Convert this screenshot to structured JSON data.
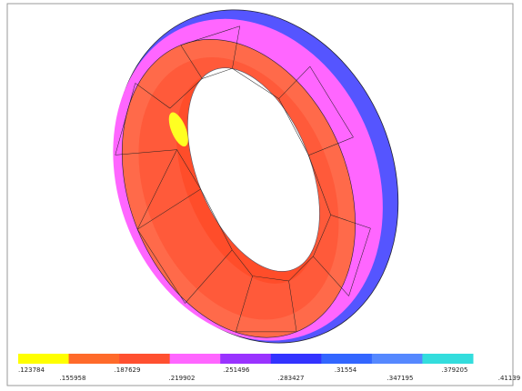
{
  "legend": {
    "colors": [
      "#ffff00",
      "#ff6a2a",
      "#ff5030",
      "#ff66ff",
      "#9933ff",
      "#3333ff",
      "#3366ff",
      "#5588ff",
      "#33dddd"
    ],
    "labels": [
      ".123784",
      ".155958",
      ".187629",
      ".219902",
      ".251496",
      ".283427",
      ".31554",
      ".347195",
      ".379205",
      ".41139"
    ]
  }
}
